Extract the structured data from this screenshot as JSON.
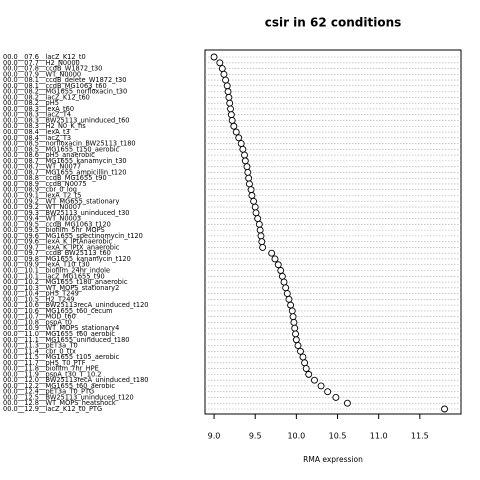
{
  "chart_data": {
    "type": "dotchart",
    "title": "csir in 62 conditions",
    "x_label": "RMA expression",
    "categories": [
      "00.0__07.6__lacZ_K12_t0",
      "00.0__07.7__H2_N0000",
      "00.0__07.8__ccdB_W1872_t30",
      "00.0__07.9__WT_N0000",
      "00.0__08.1__ccdB_delete_W1872_t30",
      "00.0__08.1__ccdB_MG1063_t60",
      "00.0__08.2__MG1655_norfloxacin_t30",
      "00.0__08.2__lacZ_K12_t60",
      "00.0__08.2__pH5",
      "00.0__08.3__lexA_t60",
      "00.0__08.3__lacZ_T4",
      "00.0__08.3__BW25113_uninduced_t60",
      "00.0__08.3__H2_N0_K_fis",
      "00.0__08.4__lexA_t3",
      "00.0__08.4__lacZ_T3",
      "00.0__08.5__norfloxacin_BW25113_t180",
      "00.0__08.5__MG1655_t150_aerobic",
      "00.0__08.6__pH5_anaerobic",
      "00.0__08.7__MG1655_kanamycin_t30",
      "00.0__08.7__WT_N0077",
      "00.0__08.7__MG1655_ampicillin_t120",
      "00.0__08.8__ccdB_MG1655_t90",
      "00.0__08.9__ccdB_N0075",
      "00.0__08.9__cbr_0_log",
      "00.0__09.1__lexA_T2_t5",
      "00.0__09.2__WT_MG655_stationary",
      "00.0__09.2__WT_N0007",
      "00.0__09.3__BW25113_uninduced_t30",
      "00.0__09.4__WT_N0003",
      "00.0__09.5__ccdB_MG1063_t120",
      "00.0__09.5__biofilm_5hr_MOPS",
      "00.0__09.6__MG1655_spectinomycin_t120",
      "00.0__09.6__lexA_K_lPtAnaerobic",
      "00.0__09.7__lexA_K_lPtX_anaerobic",
      "00.0__09.7__ccdB_BW25113_t60",
      "00.0__09.8__MG1655_kanamycin_t120",
      "00.0__09.9__lexA_T10_t30",
      "00.0__10.1__biofilm_24hr_indole",
      "00.0__10.1__lacZ_MG1655_t90",
      "00.0__10.2__MG1655_t180_anaerobic",
      "00.0__10.3__WT_MOPS_stationary2",
      "00.0__10.4__pH5_T249",
      "00.0__10.5__H2_T249",
      "00.0__10.6__BW25113recA_uninduced_t120",
      "00.0__10.6__MG1655_t60_cecum",
      "00.0__10.7__MOD_t60",
      "00.0__10.8__pspA_t0",
      "00.0__10.9__WT_MOPS_stationary4",
      "00.0__11.0__MG1655_t60_aerobic",
      "00.0__11.1__MG1655_uninduced_t180",
      "00.0__11.3__pET3a_T0",
      "00.0__11.4__cbr_0_ttx",
      "00.0__11.5__MG1655_t105_aerobic",
      "00.0__11.7__pH5_T0_PTF",
      "00.0__11.8__biofilm_7hr_HPE",
      "00.0__11.9__pspA_t30_T_10.2",
      "00.0__12.0__BW25113recA_uninduced_t180",
      "00.0__12.2__MG1655_t60_aerobic",
      "00.0__12.4__pET3a_T0_PTG",
      "00.0__12.5__BW25113_uninduced_t120",
      "00.0__12.8__WT_MOPS_heatshock",
      "00.0__12.9__lacZ_K12_t0_PTG"
    ],
    "values": [
      9.0,
      9.07,
      9.1,
      9.12,
      9.14,
      9.16,
      9.17,
      9.18,
      9.19,
      9.2,
      9.21,
      9.22,
      9.24,
      9.27,
      9.3,
      9.33,
      9.35,
      9.37,
      9.38,
      9.4,
      9.41,
      9.42,
      9.43,
      9.45,
      9.46,
      9.48,
      9.5,
      9.51,
      9.53,
      9.55,
      9.56,
      9.57,
      9.58,
      9.59,
      9.7,
      9.74,
      9.78,
      9.81,
      9.83,
      9.85,
      9.87,
      9.89,
      9.91,
      9.93,
      9.95,
      9.96,
      9.97,
      9.98,
      9.99,
      10.0,
      10.02,
      10.05,
      10.08,
      10.1,
      10.12,
      10.15,
      10.22,
      10.3,
      10.38,
      10.48,
      10.62,
      11.8
    ],
    "xlim": [
      8.89,
      12.0
    ],
    "xticks": [
      {
        "value": 9,
        "label": "9.0"
      },
      {
        "value": 9.5,
        "label": "9.5"
      },
      {
        "value": 10,
        "label": "10.0"
      },
      {
        "value": 10.5,
        "label": "10.5"
      },
      {
        "value": 11,
        "label": "11.0"
      },
      {
        "value": 11.5,
        "label": "11.5"
      }
    ],
    "grid": true
  }
}
